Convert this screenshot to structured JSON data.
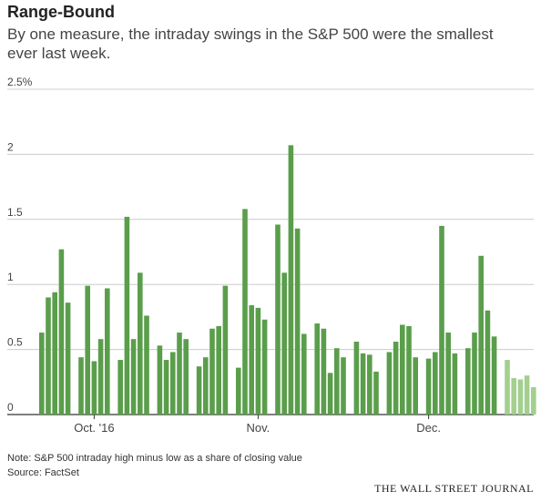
{
  "title": "Range-Bound",
  "subtitle": "By one measure, the intraday swings in the S&P 500 were the smallest ever last week.",
  "note": "Note: S&P 500 intraday high minus low as a share of closing value",
  "source": "Source: FactSet",
  "brand": "THE WALL STREET JOURNAL",
  "colors": {
    "bar": "#5a9e4b",
    "bar_recent": "#a3cf8f",
    "grid": "#cccccc",
    "axis": "#333333"
  },
  "chart_data": {
    "type": "bar",
    "title": "Range-Bound",
    "ylabel": "",
    "ylim": [
      0,
      2.5
    ],
    "grid": true,
    "y_ticks": [
      {
        "value": 0,
        "label": "0"
      },
      {
        "value": 0.5,
        "label": "0.5"
      },
      {
        "value": 1,
        "label": "1"
      },
      {
        "value": 1.5,
        "label": "1.5"
      },
      {
        "value": 2,
        "label": "2"
      },
      {
        "value": 2.5,
        "label": "2.5%"
      }
    ],
    "x_labels": [
      {
        "label": "Oct. '16",
        "index": 7
      },
      {
        "label": "Nov.",
        "index": 28
      },
      {
        "label": "Dec.",
        "index": 49
      }
    ],
    "weeks": [
      [
        0.63,
        0.9,
        0.94,
        1.27,
        0.86
      ],
      [
        0.44,
        0.99,
        0.41,
        0.58,
        0.97
      ],
      [
        0.42,
        1.52,
        0.58,
        1.09,
        0.76
      ],
      [
        0.53,
        0.42,
        0.48,
        0.63,
        0.58
      ],
      [
        0.37,
        0.44,
        0.66,
        0.68,
        0.99
      ],
      [
        0.36,
        1.58,
        0.84,
        0.82,
        0.73
      ],
      [
        1.46,
        1.09,
        2.07,
        1.43,
        0.62
      ],
      [
        0.7,
        0.66,
        0.32,
        0.51,
        0.44
      ],
      [
        0.56,
        0.47,
        0.46,
        0.33
      ],
      [
        0.48,
        0.56,
        0.69,
        0.68,
        0.44
      ],
      [
        0.43,
        0.48,
        1.45,
        0.63,
        0.47
      ],
      [
        0.51,
        0.63,
        1.22,
        0.8,
        0.6
      ],
      [
        0.42,
        0.28,
        0.27,
        0.3,
        0.21
      ]
    ],
    "highlight_week": 12
  }
}
